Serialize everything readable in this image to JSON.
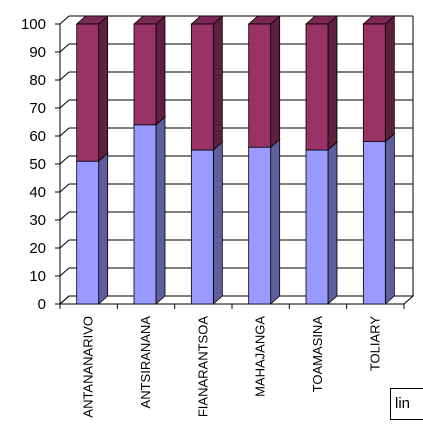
{
  "chart_data": {
    "type": "bar",
    "stacked": true,
    "three_d": true,
    "categories": [
      "ANTANANARIVO",
      "ANTSIRANANA",
      "FIANARANTSOA",
      "MAHAJANGA",
      "TOAMASINA",
      "TOLIARY"
    ],
    "series": [
      {
        "values": [
          51,
          64,
          55,
          56,
          55,
          58
        ],
        "color": "#9999ff"
      },
      {
        "values": [
          49,
          36,
          45,
          44,
          45,
          42
        ],
        "color": "#993366"
      }
    ],
    "ylim": [
      0,
      100
    ],
    "yticks": [
      0,
      10,
      20,
      30,
      40,
      50,
      60,
      70,
      80,
      90,
      100
    ],
    "grid": true,
    "legend_partial_label": "lin"
  }
}
